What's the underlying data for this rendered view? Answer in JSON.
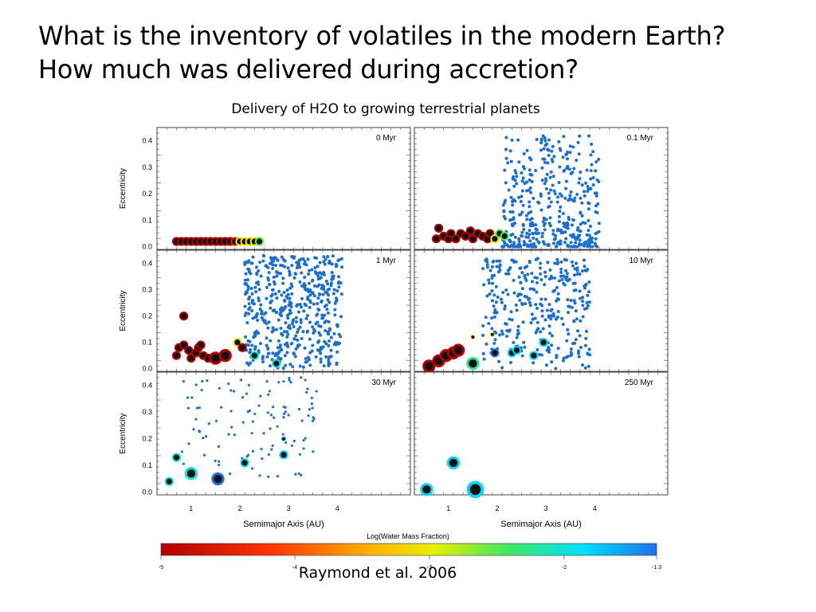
{
  "slide": {
    "title_line1": "What is the inventory of volatiles in the modern Earth?",
    "title_line2": "How much was delivered during accretion?",
    "subtitle": "Delivery of H2O to growing terrestrial planets",
    "citation": "Raymond et al. 2006"
  },
  "colors": {
    "dry": "#b01414",
    "mid": "#e6e62a",
    "wet": "#2a7fd4",
    "background": "#ffffff",
    "text": "#000000"
  },
  "chart_data": {
    "type": "scatter",
    "xlabel": "Semimajor Axis (AU)",
    "ylabel": "Eccentricity",
    "x_ticks": [
      "1",
      "2",
      "3",
      "4"
    ],
    "y_ticks": [
      "0.0",
      "0.1",
      "0.2",
      "0.3",
      "0.4"
    ],
    "xlim": [
      0.3,
      5.5
    ],
    "ylim": [
      -0.01,
      0.45
    ],
    "colorbar": {
      "label": "Log(Water Mass Fraction)",
      "ticks": [
        "-5",
        "-4",
        "-3",
        "-2",
        "-1.3"
      ],
      "range": [
        -5,
        -1.3
      ]
    },
    "panels": [
      {
        "label": "0 Myr",
        "points": [
          [
            0.7,
            0.02,
            -5,
            1
          ],
          [
            0.8,
            0.02,
            -5,
            1
          ],
          [
            0.9,
            0.02,
            -5,
            1
          ],
          [
            1.0,
            0.02,
            -5,
            1
          ],
          [
            1.1,
            0.02,
            -5,
            1
          ],
          [
            1.2,
            0.02,
            -5,
            1
          ],
          [
            1.3,
            0.02,
            -5,
            1
          ],
          [
            1.4,
            0.02,
            -5,
            1
          ],
          [
            1.5,
            0.02,
            -5,
            1
          ],
          [
            1.6,
            0.02,
            -5,
            1
          ],
          [
            1.7,
            0.02,
            -5,
            1
          ],
          [
            1.8,
            0.02,
            -5,
            1
          ],
          [
            1.9,
            0.02,
            -4.5,
            1
          ],
          [
            2.0,
            0.02,
            -3,
            1
          ],
          [
            2.1,
            0.02,
            -3,
            1
          ],
          [
            2.2,
            0.02,
            -3,
            1
          ],
          [
            2.3,
            0.02,
            -3,
            1
          ],
          [
            2.4,
            0.02,
            -2.5,
            1
          ]
        ]
      },
      {
        "label": "0.1 Myr",
        "points": [
          [
            0.75,
            0.03,
            -5,
            1
          ],
          [
            0.8,
            0.07,
            -5,
            1
          ],
          [
            0.9,
            0.04,
            -5,
            1
          ],
          [
            1.0,
            0.03,
            -5,
            1
          ],
          [
            1.05,
            0.05,
            -5,
            1
          ],
          [
            1.15,
            0.03,
            -5,
            1
          ],
          [
            1.25,
            0.05,
            -5,
            1
          ],
          [
            1.35,
            0.04,
            -5,
            1
          ],
          [
            1.45,
            0.06,
            -5,
            1
          ],
          [
            1.5,
            0.03,
            -5,
            1
          ],
          [
            1.6,
            0.05,
            -5,
            1
          ],
          [
            1.7,
            0.04,
            -5,
            1
          ],
          [
            1.8,
            0.03,
            -5,
            1
          ],
          [
            1.85,
            0.05,
            -5,
            1
          ],
          [
            1.95,
            0.03,
            -3,
            1
          ],
          [
            2.05,
            0.05,
            -2.5,
            1
          ],
          [
            2.15,
            0.04,
            -2.5,
            1
          ]
        ]
      },
      {
        "label": "1 Myr",
        "points": [
          [
            0.7,
            0.05,
            -5,
            1
          ],
          [
            0.75,
            0.08,
            -5,
            1
          ],
          [
            0.85,
            0.09,
            -5,
            1
          ],
          [
            0.85,
            0.2,
            -5,
            1
          ],
          [
            0.95,
            0.07,
            -5,
            1
          ],
          [
            1.0,
            0.04,
            -5,
            1
          ],
          [
            1.1,
            0.06,
            -5,
            1
          ],
          [
            1.15,
            0.08,
            -5,
            1
          ],
          [
            1.2,
            0.09,
            -5,
            1
          ],
          [
            1.25,
            0.05,
            -5,
            1
          ],
          [
            1.35,
            0.04,
            -5,
            1
          ],
          [
            1.5,
            0.04,
            -5,
            2
          ],
          [
            1.7,
            0.05,
            -5,
            2
          ],
          [
            1.95,
            0.1,
            -3,
            1
          ],
          [
            2.05,
            0.08,
            -5,
            1
          ],
          [
            2.3,
            0.05,
            -2,
            1
          ],
          [
            2.75,
            0.02,
            -2,
            1
          ]
        ]
      },
      {
        "label": "10 Myr",
        "points": [
          [
            0.6,
            0.01,
            -5,
            2
          ],
          [
            0.8,
            0.03,
            -5,
            2
          ],
          [
            0.95,
            0.05,
            -5,
            2
          ],
          [
            1.1,
            0.06,
            -5,
            2
          ],
          [
            1.2,
            0.07,
            -5,
            2
          ],
          [
            1.5,
            0.02,
            -2.2,
            2
          ],
          [
            1.5,
            0.12,
            -3,
            0
          ],
          [
            1.9,
            0.13,
            -3,
            0
          ],
          [
            1.95,
            0.06,
            -1.3,
            1
          ],
          [
            2.3,
            0.06,
            -1.8,
            1
          ],
          [
            2.4,
            0.07,
            -1.8,
            1
          ],
          [
            2.75,
            0.05,
            -1.8,
            1
          ],
          [
            2.95,
            0.1,
            -1.8,
            1
          ]
        ]
      },
      {
        "label": "30 Myr",
        "points": [
          [
            0.55,
            0.04,
            -2,
            1
          ],
          [
            0.7,
            0.13,
            -2,
            1
          ],
          [
            1.0,
            0.07,
            -2,
            2
          ],
          [
            1.55,
            0.05,
            -1.3,
            2
          ],
          [
            2.1,
            0.11,
            -1.8,
            1
          ],
          [
            2.9,
            0.14,
            -1.8,
            1
          ],
          [
            2.9,
            0.2,
            -1.8,
            0
          ]
        ]
      },
      {
        "label": "250 Myr",
        "points": [
          [
            0.55,
            0.01,
            -1.8,
            2
          ],
          [
            1.1,
            0.11,
            -1.8,
            2
          ],
          [
            1.55,
            0.01,
            -1.8,
            3
          ]
        ]
      }
    ]
  }
}
